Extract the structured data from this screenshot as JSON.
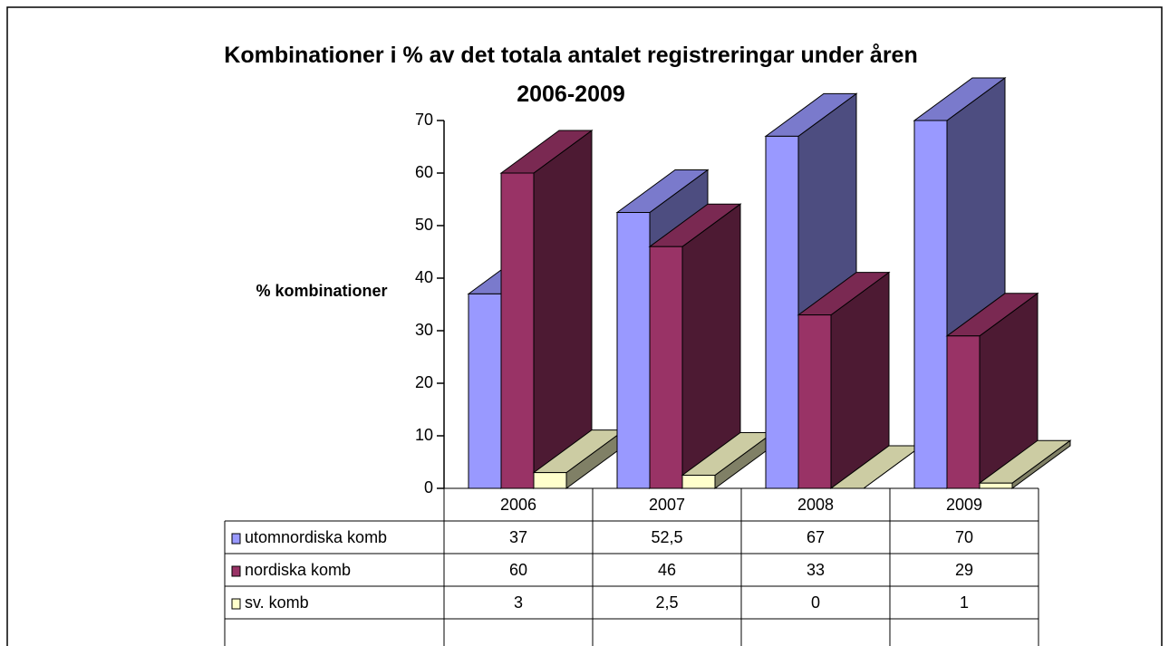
{
  "chart_data": {
    "type": "bar3d",
    "title": "Kombinationer i % av det totala antalet registreringar under åren 2006-2009",
    "ylabel": "% kombinationer",
    "categories": [
      "2006",
      "2007",
      "2008",
      "2009"
    ],
    "series": [
      {
        "name": "utomnordiska komb",
        "color": "#9999ff",
        "values": [
          37,
          52.5,
          67,
          70
        ],
        "value_labels": [
          "37",
          "52,5",
          "67",
          "70"
        ]
      },
      {
        "name": "nordiska komb",
        "color": "#993366",
        "values": [
          60,
          46,
          33,
          29
        ]
      },
      {
        "name": "sv. komb",
        "color": "#ffffcc",
        "values": [
          3,
          2.5,
          0,
          1
        ],
        "value_labels": [
          "3",
          "2,5",
          "0",
          "1"
        ]
      }
    ],
    "ylim": [
      0,
      70
    ],
    "yticks": [
      0,
      10,
      20,
      30,
      40,
      50,
      60,
      70
    ],
    "grid": false,
    "data_table": true
  }
}
